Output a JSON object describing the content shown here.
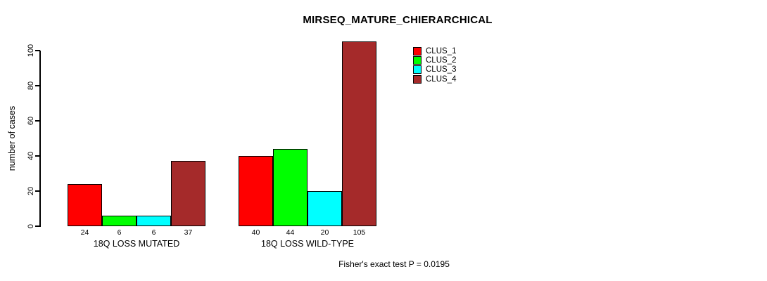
{
  "chart_data": {
    "type": "bar",
    "title": "MIRSEQ_MATURE_CHIERARCHICAL",
    "xlabel": "",
    "ylabel": "number of cases",
    "ylim": [
      0,
      105
    ],
    "yticks": [
      0,
      20,
      40,
      60,
      80,
      100
    ],
    "grid": false,
    "legend_position": "top-right",
    "bar_orientation": "vertical-grouped",
    "categories": [
      "18Q LOSS MUTATED",
      "18Q LOSS WILD-TYPE"
    ],
    "series": [
      {
        "name": "CLUS_1",
        "color": "#FF0000",
        "values": [
          24,
          40
        ]
      },
      {
        "name": "CLUS_2",
        "color": "#00FF00",
        "values": [
          6,
          44
        ]
      },
      {
        "name": "CLUS_3",
        "color": "#00FFFF",
        "values": [
          6,
          20
        ]
      },
      {
        "name": "CLUS_4",
        "color": "#A52A2A",
        "values": [
          37,
          105
        ]
      }
    ],
    "bar_value_labels": [
      [
        24,
        6,
        6,
        37
      ],
      [
        40,
        44,
        20,
        105
      ]
    ],
    "annotation": "Fisher's exact test P = 0.0195"
  },
  "colors": {
    "background": "#FFFFFF",
    "axis": "#000000",
    "text": "#000000",
    "bar_border": "#000000"
  }
}
